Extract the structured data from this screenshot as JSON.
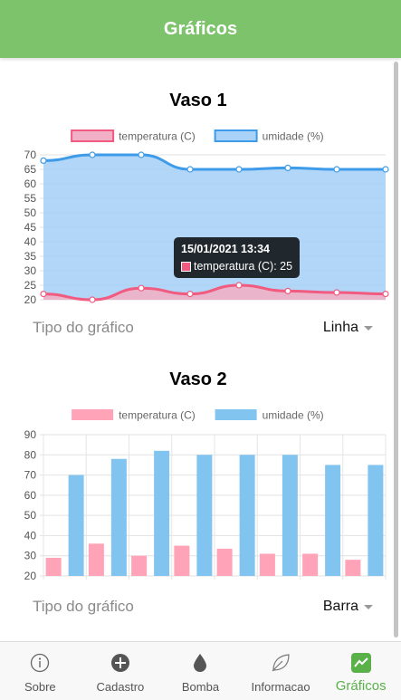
{
  "header": {
    "title": "Gráficos"
  },
  "charts": [
    {
      "title": "Vaso 1",
      "tooltip": {
        "title": "15/01/2021 13:34",
        "label": "temperatura (C): 25"
      },
      "type_label": "Tipo do gráfico",
      "type_value": "Linha"
    },
    {
      "title": "Vaso 2",
      "type_label": "Tipo do gráfico",
      "type_value": "Barra"
    }
  ],
  "chart_data": [
    {
      "type": "line",
      "x": [
        1,
        2,
        3,
        4,
        5,
        6,
        7,
        8
      ],
      "ylim": [
        20,
        70
      ],
      "yticks": [
        20,
        25,
        30,
        35,
        40,
        45,
        50,
        55,
        60,
        65,
        70
      ],
      "fill": true,
      "series": [
        {
          "name": "temperatura (C)",
          "values": [
            22,
            20,
            24,
            22,
            25,
            23,
            22.5,
            22
          ],
          "color": "#f05b7f",
          "fill": "#f1b0c5"
        },
        {
          "name": "umidade (%)",
          "values": [
            68,
            70,
            70,
            65,
            65,
            65.5,
            65,
            65
          ],
          "color": "#3d9be9",
          "fill": "#a8d2f7"
        }
      ],
      "legend": "top",
      "grid": true
    },
    {
      "type": "bar",
      "x": [
        1,
        2,
        3,
        4,
        5,
        6,
        7,
        8
      ],
      "ylim": [
        20,
        90
      ],
      "yticks": [
        20,
        30,
        40,
        50,
        60,
        70,
        80,
        90
      ],
      "series": [
        {
          "name": "temperatura (C)",
          "values": [
            29,
            36,
            30,
            35,
            33.5,
            31,
            31,
            28
          ],
          "color": "#ffa3b8"
        },
        {
          "name": "umidade (%)",
          "values": [
            70,
            78,
            82,
            80,
            80,
            80,
            75,
            75
          ],
          "color": "#82c4f0"
        }
      ],
      "legend": "top",
      "grid": true
    }
  ],
  "tabs": [
    {
      "label": "Sobre",
      "icon": "info-icon"
    },
    {
      "label": "Cadastro",
      "icon": "add-icon"
    },
    {
      "label": "Bomba",
      "icon": "water-drop-icon"
    },
    {
      "label": "Informacao",
      "icon": "leaf-icon"
    },
    {
      "label": "Gráficos",
      "icon": "chart-icon"
    }
  ],
  "colors": {
    "header": "#7dc36b",
    "active_tab": "#5ab14a"
  }
}
